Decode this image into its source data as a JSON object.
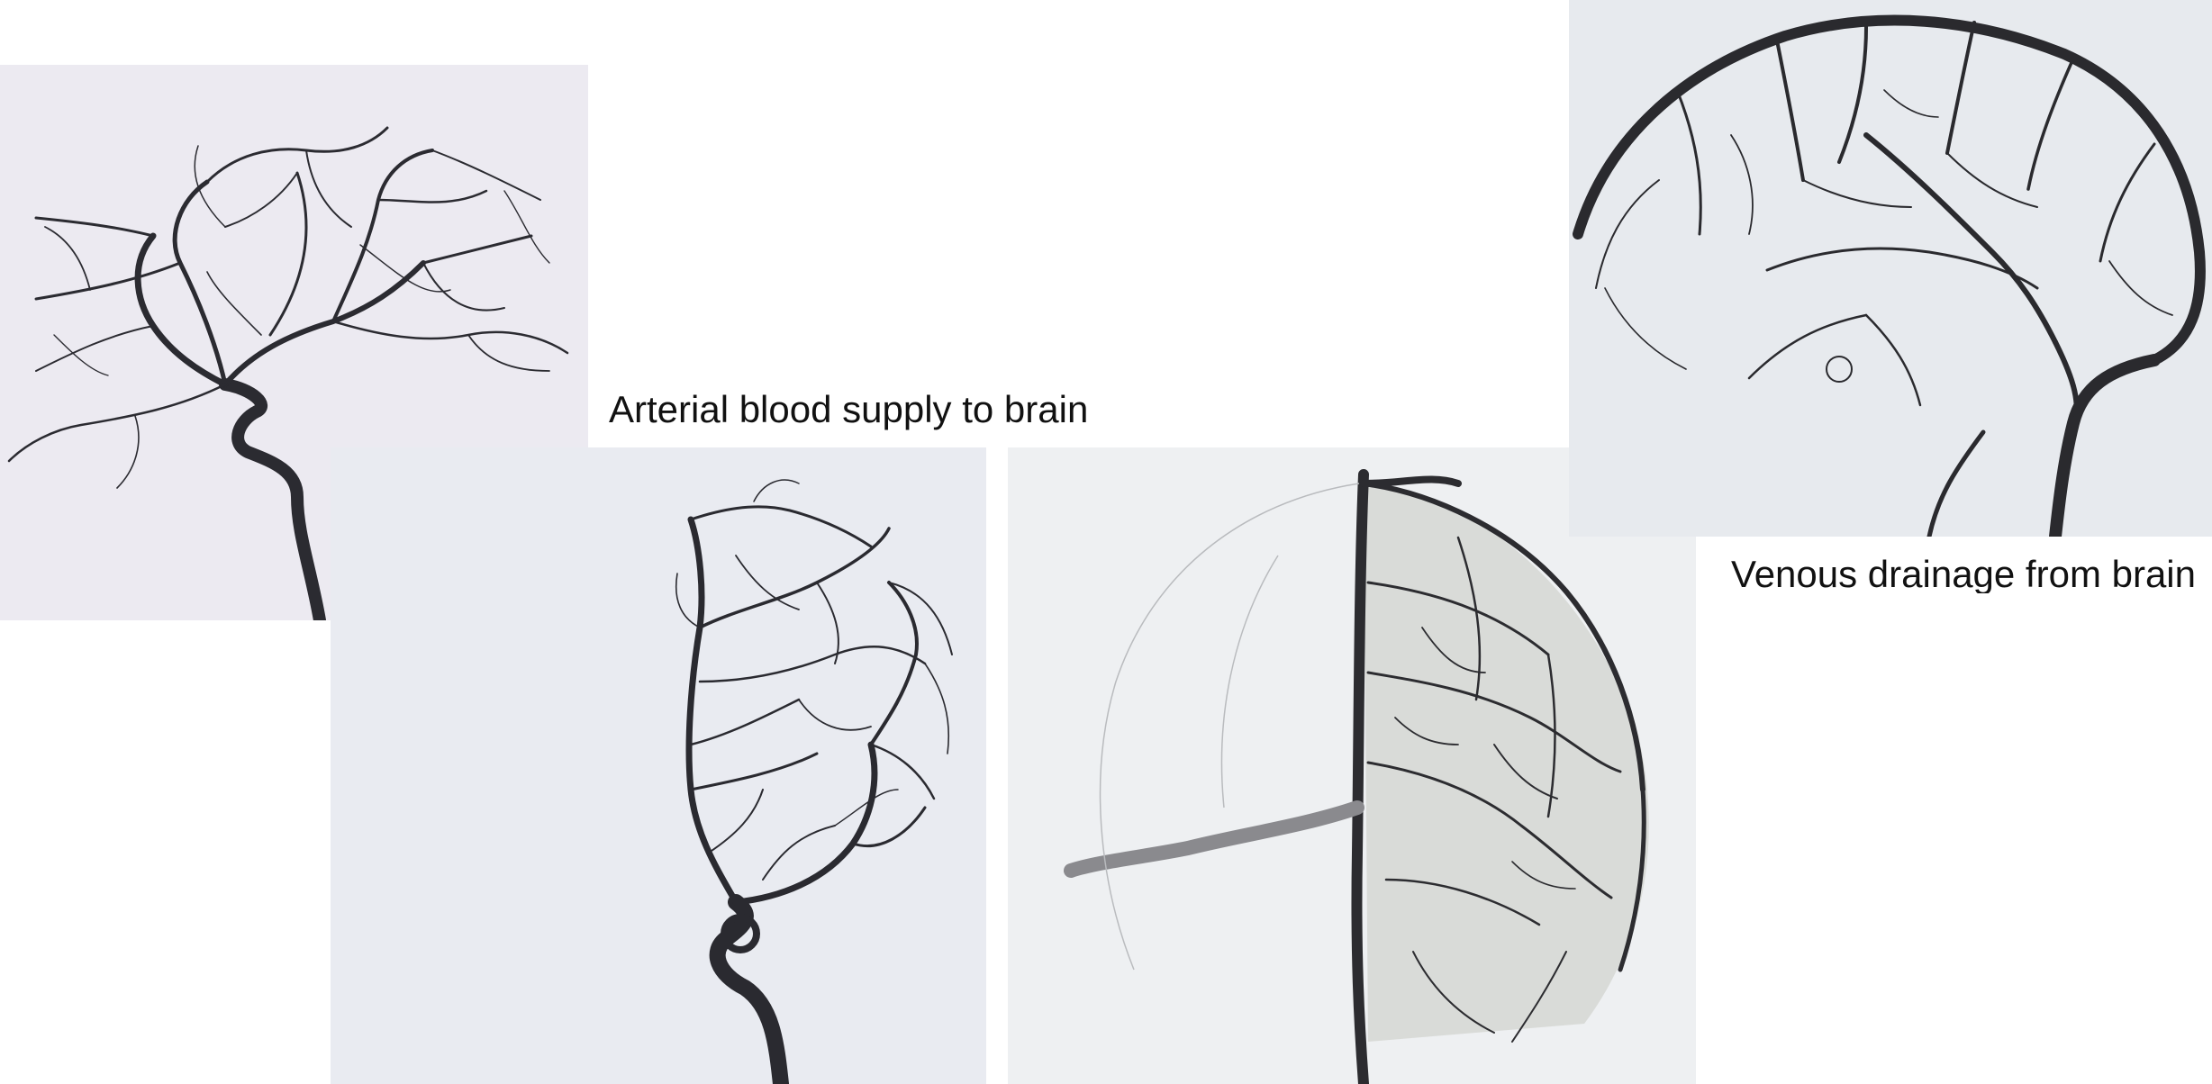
{
  "captions": {
    "arterial": "Arterial blood supply to brain",
    "venous": "Venous drainage from brain"
  },
  "images": [
    {
      "name": "arterial-angiogram-lateral",
      "depicts": "cerebral arteries, lateral view"
    },
    {
      "name": "arterial-angiogram-frontal",
      "depicts": "cerebral arteries, frontal view"
    },
    {
      "name": "venous-angiogram-frontal",
      "depicts": "cerebral veins, frontal view"
    },
    {
      "name": "venous-angiogram-lateral",
      "depicts": "cerebral veins and sinuses, lateral view"
    }
  ],
  "colors": {
    "vessel": "#2a2a30",
    "background": "#ffffff",
    "caption": "#111111"
  }
}
